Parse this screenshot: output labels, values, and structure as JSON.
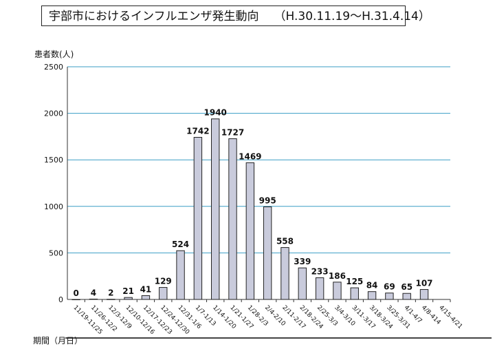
{
  "chart_data": {
    "type": "bar",
    "title": "宇部市におけるインフルエンザ発生動向",
    "subtitle": "（H.30.11.19～H.31.4.14）",
    "ylabel": "患者数(人)",
    "xlabel": "期間（月日）",
    "ylim": [
      0,
      2500
    ],
    "yticks": [
      0,
      500,
      1000,
      1500,
      2000,
      2500
    ],
    "grid": true,
    "categories": [
      "11/19-11/25",
      "11/26-12/2",
      "12/3-12/9",
      "12/10-12/16",
      "12/17-12/23",
      "12/24-12/30",
      "12/31-1/6",
      "1/7-1/13",
      "1/14-1/20",
      "1/21-1/27",
      "1/28-2/3",
      "2/4-2/10",
      "2/11-2/17",
      "2/18-2/24",
      "2/25-3/3",
      "3/4-3/10",
      "3/11-3/17",
      "3/18-3/24",
      "3/25-3/31",
      "4/1-4/7",
      "4/8-414",
      "4/15-4/21"
    ],
    "values": [
      0,
      4,
      2,
      21,
      41,
      129,
      524,
      1742,
      1940,
      1727,
      1469,
      995,
      558,
      339,
      233,
      186,
      125,
      84,
      69,
      65,
      107,
      null
    ],
    "colors": {
      "bar": "#c9cbdc",
      "bar_edge": "#222222",
      "grid": "#3a9ec6"
    }
  }
}
